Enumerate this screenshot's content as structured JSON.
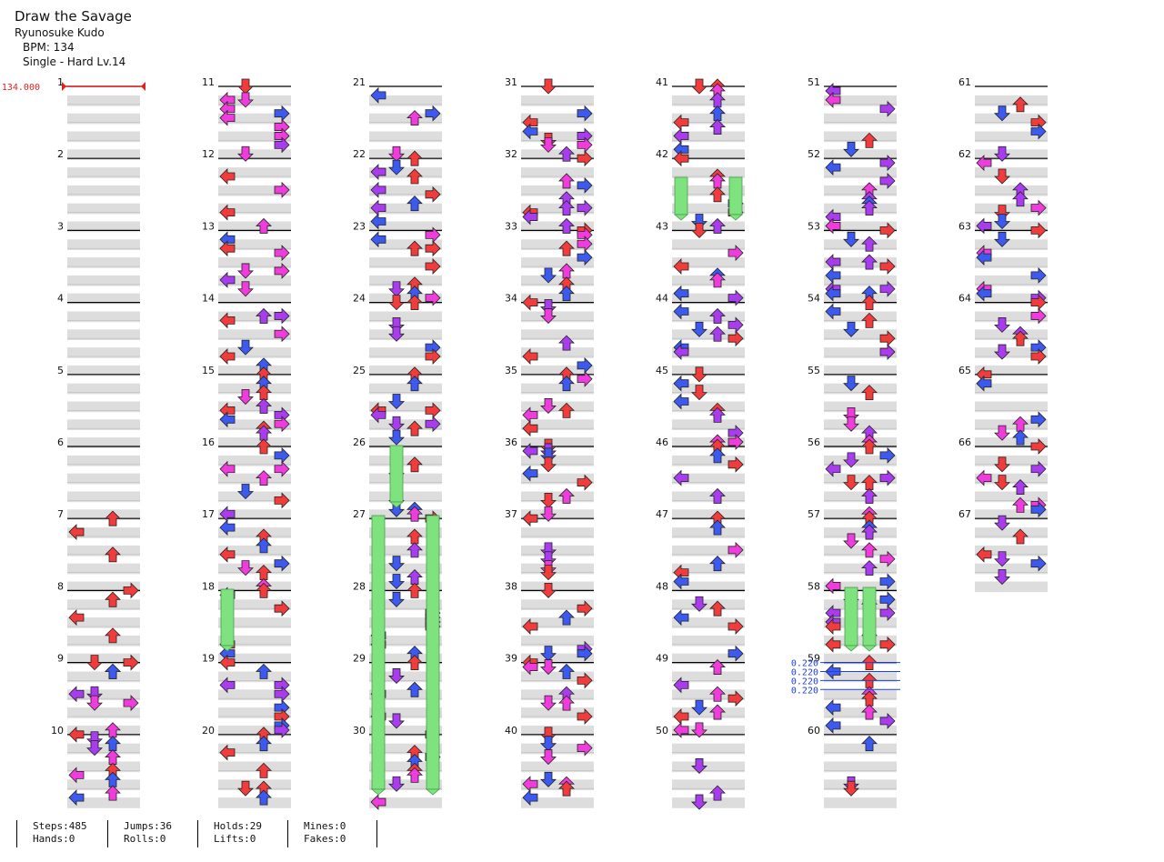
{
  "song": {
    "title": "Draw the Savage",
    "artist": "Ryunosuke Kudo",
    "bpm_label": "BPM: 134",
    "difficulty": "Single - Hard  Lv.14"
  },
  "markers": {
    "bpm_change": "134.000",
    "scroll_speed": "0.220"
  },
  "colors": {
    "red": "#f23c3c",
    "blue": "#3c5af0",
    "purple": "#aa3cf0",
    "pink": "#f03cdc",
    "hold": "#7ee27e"
  },
  "measure_labels": [
    "1",
    "2",
    "3",
    "4",
    "5",
    "6",
    "7",
    "8",
    "9",
    "10",
    "11",
    "12",
    "13",
    "14",
    "15",
    "16",
    "17",
    "18",
    "19",
    "20",
    "21",
    "22",
    "23",
    "24",
    "25",
    "26",
    "27",
    "28",
    "29",
    "30",
    "31",
    "32",
    "33",
    "34",
    "35",
    "36",
    "37",
    "38",
    "39",
    "40",
    "41",
    "42",
    "43",
    "44",
    "45",
    "46",
    "47",
    "48",
    "49",
    "50",
    "51",
    "52",
    "53",
    "54",
    "55",
    "56",
    "57",
    "58",
    "59",
    "60",
    "61",
    "62",
    "63",
    "64",
    "65",
    "66",
    "67"
  ],
  "stats": [
    {
      "top": "Steps:485",
      "bottom": "Hands:0"
    },
    {
      "top": "Jumps:36",
      "bottom": "Rolls:0"
    },
    {
      "top": "Holds:29",
      "bottom": "Lifts:0"
    },
    {
      "top": "Mines:0",
      "bottom": "Fakes:0"
    }
  ],
  "chart_data": {
    "type": "table",
    "measures_per_column": 10,
    "lanes": [
      "left",
      "down",
      "up",
      "right"
    ],
    "total_measures": 67,
    "first_notes": [
      {
        "measure": 7,
        "beat": 0,
        "lane": "up"
      },
      {
        "measure": 7,
        "beat": 0.75,
        "lane": "left"
      },
      {
        "measure": 7,
        "beat": 2.0,
        "lane": "up"
      },
      {
        "measure": 8,
        "beat": 0,
        "lane": "right"
      },
      {
        "measure": 8,
        "beat": 0.5,
        "lane": "up"
      },
      {
        "measure": 8,
        "beat": 1.5,
        "lane": "left"
      },
      {
        "measure": 8,
        "beat": 2.5,
        "lane": "up"
      },
      {
        "measure": 9,
        "beat": 0,
        "lane": "right"
      },
      {
        "measure": 9,
        "beat": 0.5,
        "lane": "up"
      }
    ]
  }
}
